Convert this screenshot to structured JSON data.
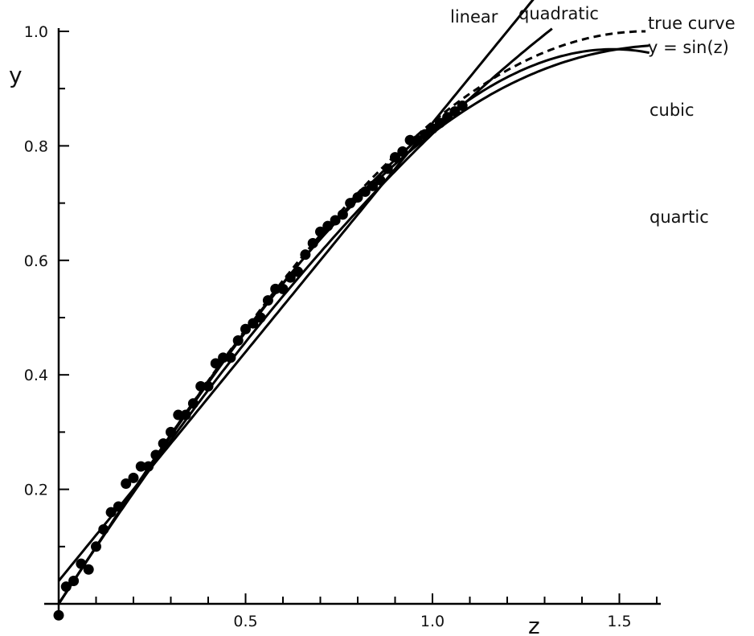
{
  "chart_data": {
    "type": "scatter",
    "title": "",
    "xlabel": "z",
    "ylabel": "y",
    "xlim": [
      0,
      1.6
    ],
    "ylim": [
      0,
      1.0
    ],
    "x_ticks": [
      0.5,
      1.0,
      1.5
    ],
    "x_tick_labels": [
      "0.5",
      "1.0",
      "1.5"
    ],
    "y_ticks": [
      0.2,
      0.4,
      0.6,
      0.8,
      1.0
    ],
    "y_tick_labels": [
      "0.2",
      "0.4",
      "0.6",
      "0.8",
      "1.0"
    ],
    "grid": false,
    "points": {
      "x": [
        0.0,
        0.02,
        0.04,
        0.06,
        0.08,
        0.1,
        0.12,
        0.14,
        0.16,
        0.18,
        0.2,
        0.22,
        0.24,
        0.26,
        0.28,
        0.3,
        0.32,
        0.34,
        0.36,
        0.38,
        0.4,
        0.42,
        0.44,
        0.46,
        0.48,
        0.5,
        0.52,
        0.54,
        0.56,
        0.58,
        0.6,
        0.62,
        0.64,
        0.66,
        0.68,
        0.7,
        0.72,
        0.74,
        0.76,
        0.78,
        0.8,
        0.82,
        0.84,
        0.86,
        0.88,
        0.9,
        0.92,
        0.94,
        0.96,
        0.98,
        1.0,
        1.02,
        1.04,
        1.06,
        1.08
      ],
      "y": [
        -0.02,
        0.03,
        0.04,
        0.07,
        0.06,
        0.1,
        0.13,
        0.16,
        0.17,
        0.21,
        0.22,
        0.24,
        0.24,
        0.26,
        0.28,
        0.3,
        0.33,
        0.33,
        0.35,
        0.38,
        0.38,
        0.42,
        0.43,
        0.43,
        0.46,
        0.48,
        0.49,
        0.5,
        0.53,
        0.55,
        0.55,
        0.57,
        0.58,
        0.61,
        0.63,
        0.65,
        0.66,
        0.67,
        0.68,
        0.7,
        0.71,
        0.72,
        0.73,
        0.74,
        0.76,
        0.78,
        0.79,
        0.81,
        0.81,
        0.82,
        0.83,
        0.84,
        0.85,
        0.86,
        0.87
      ]
    },
    "series": [
      {
        "name": "linear",
        "x_range": [
          0,
          1.32
        ],
        "coefficients": [
          0.04,
          0.8
        ]
      },
      {
        "name": "quadratic",
        "x_range": [
          0,
          1.32
        ],
        "coefficients": [
          0.0,
          1.008,
          -0.187
        ]
      },
      {
        "name": "true curve y = sin(z)",
        "x_range": [
          0,
          1.57
        ],
        "function": "sin",
        "style": "dashed"
      },
      {
        "name": "cubic",
        "x_range": [
          0,
          1.58
        ],
        "coefficients": [
          0.0,
          0.996,
          -0.022,
          -0.141
        ]
      },
      {
        "name": "quartic",
        "x_range": [
          0,
          1.58
        ],
        "coefficients": [
          0.0,
          0.996,
          0.039,
          -0.276,
          0.063
        ]
      }
    ],
    "curve_labels": [
      {
        "id": "linear",
        "text": "linear"
      },
      {
        "id": "quadratic",
        "text": "quadratic"
      },
      {
        "id": "true1",
        "text": "true curve"
      },
      {
        "id": "true2",
        "text": "y = sin(z)"
      },
      {
        "id": "cubic",
        "text": "cubic"
      },
      {
        "id": "quartic",
        "text": "quartic"
      }
    ]
  }
}
